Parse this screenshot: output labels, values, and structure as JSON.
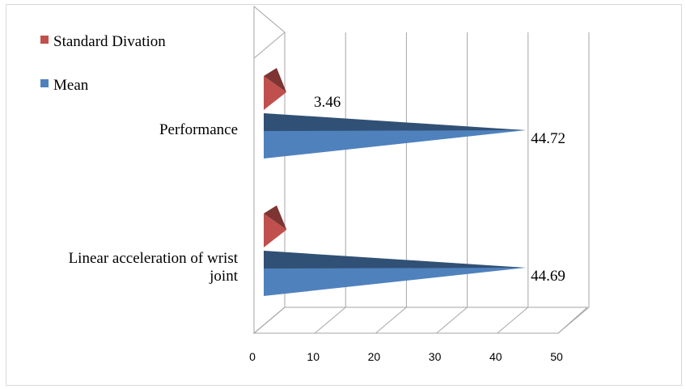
{
  "chart_data": {
    "type": "bar",
    "orientation": "horizontal",
    "style": "3d-cone",
    "categories": [
      "Performance",
      "Linear acceleration of wrist joint"
    ],
    "category_lines": [
      [
        "Performance"
      ],
      [
        "Linear acceleration of wrist",
        "joint"
      ]
    ],
    "series": [
      {
        "name": "Standard Divation",
        "values": [
          3.46,
          3.5
        ],
        "color": "#C0504D",
        "labels": [
          "3.46",
          ""
        ]
      },
      {
        "name": "Mean",
        "values": [
          44.72,
          44.69
        ],
        "color": "#4F81BD",
        "labels": [
          "44.72",
          "44.69"
        ]
      }
    ],
    "xlim": [
      0,
      50
    ],
    "xticks": [
      "0",
      "10",
      "20",
      "30",
      "40",
      "50"
    ],
    "grid": true,
    "legend_position": "top-left"
  }
}
